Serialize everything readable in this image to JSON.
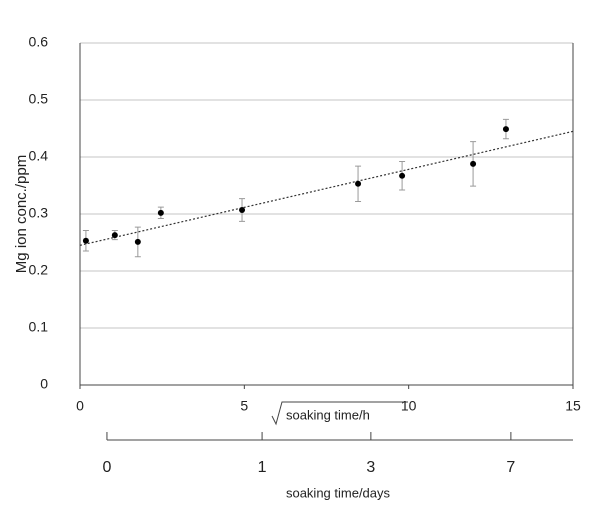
{
  "chart_data": {
    "type": "scatter",
    "ylabel": "Mg ion conc./ppm",
    "xlabel": "soaking time/h",
    "x2label": "soaking time/days",
    "x": [
      0.18,
      1.06,
      1.76,
      2.46,
      4.93,
      8.46,
      9.8,
      11.96,
      12.96
    ],
    "values": [
      0.253,
      0.263,
      0.251,
      0.302,
      0.307,
      0.353,
      0.367,
      0.388,
      0.449
    ],
    "errors": [
      0.018,
      0.008,
      0.026,
      0.01,
      0.02,
      0.031,
      0.025,
      0.039,
      0.017
    ],
    "color": "#000000",
    "error_color": "#9a9a9a",
    "trendline": {
      "x": [
        0,
        15
      ],
      "values": [
        0.245,
        0.445
      ]
    },
    "xlim": [
      0,
      15
    ],
    "xticks": [
      0,
      5,
      10,
      15
    ],
    "ylim": [
      0,
      0.6
    ],
    "yticks": [
      0,
      0.1,
      0.2,
      0.3,
      0.4,
      0.5,
      0.6
    ],
    "x2lim": [
      0.82,
      15
    ],
    "x2ticks": [
      {
        "value": 0.82,
        "label": "0"
      },
      {
        "value": 5.54,
        "label": "1"
      },
      {
        "value": 8.85,
        "label": "3"
      },
      {
        "value": 13.11,
        "label": "7"
      }
    ],
    "grid": true
  }
}
